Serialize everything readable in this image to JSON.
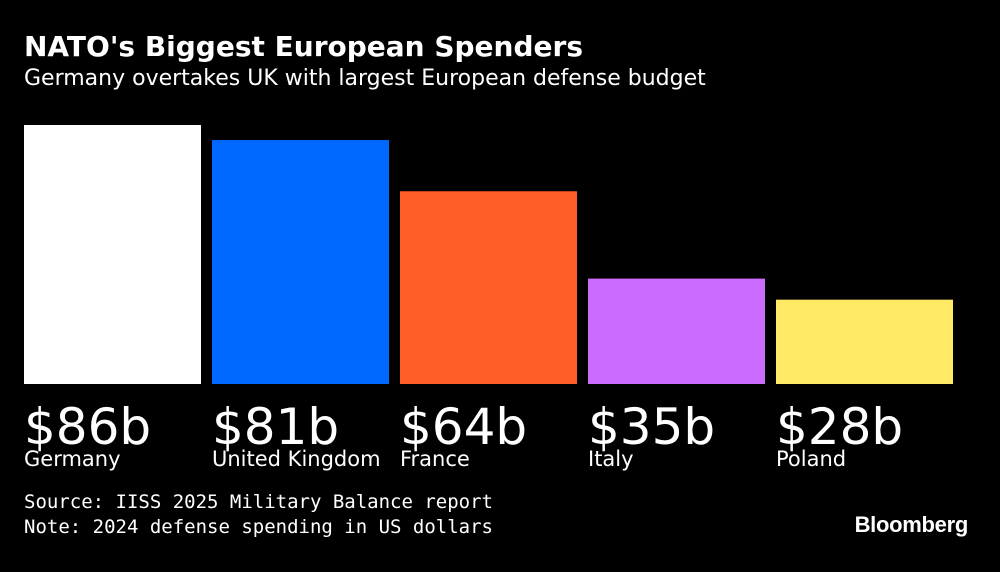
{
  "title": "NATO's Biggest European Spenders",
  "subtitle": "Germany overtakes UK with largest European defense budget",
  "chart_data": {
    "type": "bar",
    "title": "NATO's Biggest European Spenders",
    "subtitle": "Germany overtakes UK with largest European defense budget",
    "categories": [
      "Germany",
      "United Kingdom",
      "France",
      "Italy",
      "Poland"
    ],
    "values": [
      86,
      81,
      64,
      35,
      28
    ],
    "value_labels": [
      "$86b",
      "$81b",
      "$64b",
      "$35b",
      "$28b"
    ],
    "colors": [
      "#ffffff",
      "#0068ff",
      "#ff5c29",
      "#cb6bff",
      "#ffe965"
    ],
    "unit": "billion US dollars",
    "xlabel": "",
    "ylabel": "",
    "ylim": [
      0,
      86
    ],
    "grid": false,
    "legend": "none"
  },
  "source": "Source: IISS 2025 Military Balance report",
  "note": "Note: 2024 defense spending in US dollars",
  "brand": "Bloomberg"
}
